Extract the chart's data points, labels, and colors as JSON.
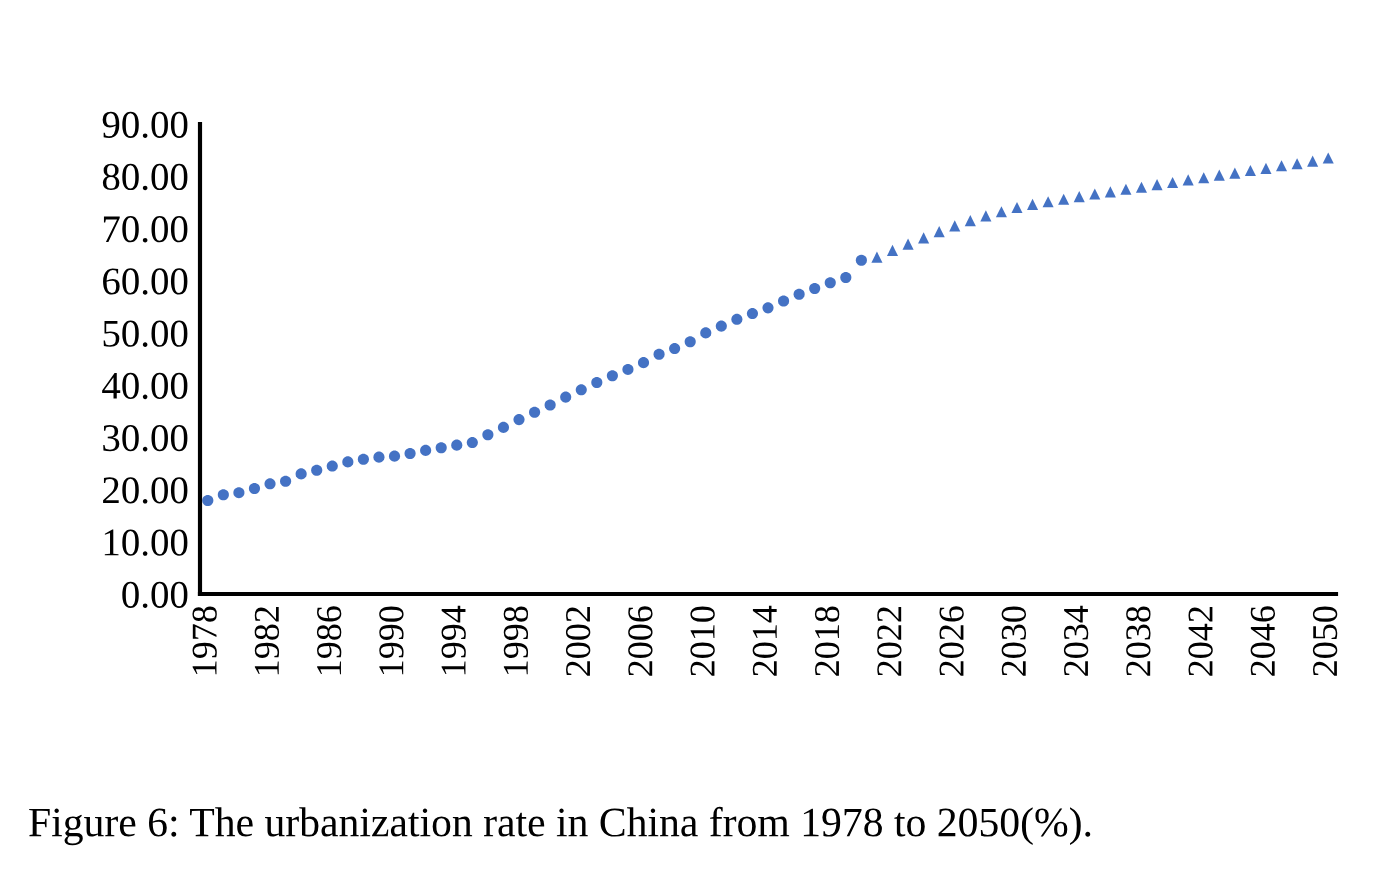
{
  "chart_data": {
    "type": "scatter",
    "categories": [
      "1978",
      null,
      null,
      null,
      "1982",
      null,
      null,
      null,
      "1986",
      null,
      null,
      null,
      "1990",
      null,
      null,
      null,
      "1994",
      null,
      null,
      null,
      "1998",
      null,
      null,
      null,
      "2002",
      null,
      null,
      null,
      "2006",
      null,
      null,
      null,
      "2010",
      null,
      null,
      null,
      "2014",
      null,
      null,
      null,
      "2018",
      null,
      null,
      null,
      "2022",
      null,
      null,
      null,
      "2026",
      null,
      null,
      null,
      "2030",
      null,
      null,
      null,
      "2034",
      null,
      null,
      null,
      "2038",
      null,
      null,
      null,
      "2042",
      null,
      null,
      null,
      "2046",
      null,
      null,
      null,
      "2050"
    ],
    "series": [
      {
        "color": "#4472c4",
        "marker": "circle",
        "values": [
          17.9,
          19.0,
          19.4,
          20.2,
          21.1,
          21.6,
          23.0,
          23.7,
          24.5,
          25.3,
          25.8,
          26.2,
          26.4,
          26.9,
          27.5,
          28.0,
          28.5,
          29.0,
          30.5,
          31.9,
          33.4,
          34.8,
          36.2,
          37.7,
          39.1,
          40.5,
          41.8,
          43.0,
          44.3,
          45.9,
          47.0,
          48.3,
          50.0,
          51.3,
          52.6,
          53.7,
          54.8,
          56.1,
          57.4,
          58.5,
          59.6,
          60.6,
          63.9,
          null,
          null,
          null,
          null,
          null,
          null,
          null,
          null,
          null,
          null,
          null,
          null,
          null,
          null,
          null,
          null,
          null,
          null,
          null,
          null,
          null,
          null,
          null,
          null,
          null,
          null,
          null,
          null,
          null,
          null
        ]
      },
      {
        "color": "#4472c4",
        "marker": "triangle",
        "values": [
          null,
          null,
          null,
          null,
          null,
          null,
          null,
          null,
          null,
          null,
          null,
          null,
          null,
          null,
          null,
          null,
          null,
          null,
          null,
          null,
          null,
          null,
          null,
          null,
          null,
          null,
          null,
          null,
          null,
          null,
          null,
          null,
          null,
          null,
          null,
          null,
          null,
          null,
          null,
          null,
          null,
          null,
          null,
          64.5,
          65.8,
          67.0,
          68.2,
          69.4,
          70.5,
          71.5,
          72.4,
          73.2,
          74.0,
          74.6,
          75.1,
          75.6,
          76.1,
          76.6,
          77.0,
          77.5,
          77.9,
          78.4,
          78.8,
          79.3,
          79.7,
          80.2,
          80.6,
          81.1,
          81.5,
          82.0,
          82.4,
          82.9,
          83.5
        ]
      }
    ],
    "ylim": [
      0,
      90
    ],
    "yticks": [
      {
        "value": 0,
        "label": "0.00"
      },
      {
        "value": 10,
        "label": "10.00"
      },
      {
        "value": 20,
        "label": "20.00"
      },
      {
        "value": 30,
        "label": "30.00"
      },
      {
        "value": 40,
        "label": "40.00"
      },
      {
        "value": 50,
        "label": "50.00"
      },
      {
        "value": 60,
        "label": "60.00"
      },
      {
        "value": 70,
        "label": "70.00"
      },
      {
        "value": 80,
        "label": "80.00"
      },
      {
        "value": 90,
        "label": "90.00"
      }
    ],
    "grid": false,
    "legend": false,
    "annotations": [
      "Figure 6: The urbanization rate in China from 1978 to 2050(%)."
    ]
  }
}
